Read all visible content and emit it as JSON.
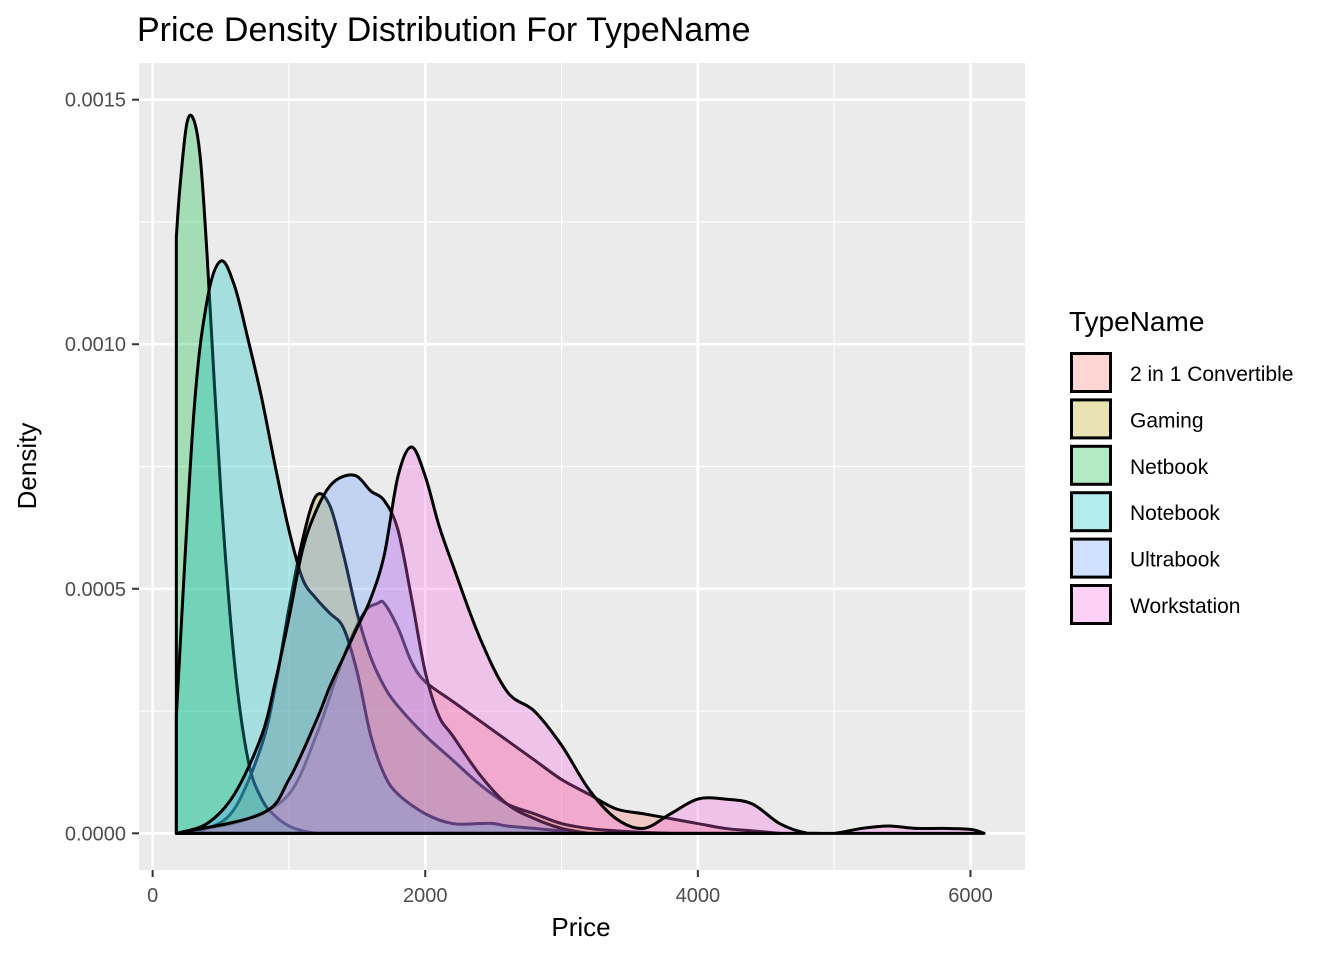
{
  "chart_data": {
    "type": "area",
    "title": "Price Density Distribution For TypeName",
    "xlabel": "Price",
    "ylabel": "Density",
    "xlim": [
      -100,
      6400
    ],
    "ylim": [
      -7.5e-05,
      0.001575
    ],
    "x_ticks": [
      0,
      2000,
      4000,
      6000
    ],
    "x_tick_labels": [
      "0",
      "2000",
      "4000",
      "6000"
    ],
    "y_ticks": [
      0.0,
      0.0005,
      0.001,
      0.0015
    ],
    "y_tick_labels": [
      "0.0000",
      "0.0005",
      "0.0010",
      "0.0015"
    ],
    "grid": true,
    "legend_position": "right",
    "legend_title": "TypeName",
    "series": [
      {
        "name": "2 in 1 Convertible",
        "color": "#F8766D",
        "x": [
          174,
          400,
          700,
          1000,
          1200,
          1400,
          1550,
          1650,
          1700,
          1800,
          1900,
          2000,
          2200,
          2400,
          2600,
          2800,
          3000,
          3200,
          3400,
          3600,
          3800,
          4000,
          4200,
          4400,
          4600
        ],
        "y": [
          0.0,
          1e-05,
          3e-05,
          8e-05,
          0.0002,
          0.00036,
          0.00045,
          0.00047,
          0.00047,
          0.00042,
          0.00035,
          0.00031,
          0.00027,
          0.00023,
          0.00019,
          0.00015,
          0.00011,
          8e-05,
          5e-05,
          4e-05,
          3e-05,
          2e-05,
          1e-05,
          5e-06,
          0.0
        ]
      },
      {
        "name": "Gaming",
        "color": "#B79F00",
        "x": [
          174,
          400,
          600,
          800,
          900,
          1000,
          1100,
          1200,
          1300,
          1400,
          1500,
          1600,
          1700,
          1800,
          2000,
          2200,
          2400,
          2600,
          2800,
          3000,
          3200,
          3400,
          3600,
          3800
        ],
        "y": [
          0.0,
          1e-05,
          5e-05,
          0.00018,
          0.0003,
          0.00046,
          0.0006,
          0.00069,
          0.00067,
          0.00057,
          0.00045,
          0.00036,
          0.0003,
          0.00026,
          0.0002,
          0.00015,
          0.0001,
          6e-05,
          4e-05,
          2e-05,
          1e-05,
          5e-06,
          2e-06,
          0.0
        ]
      },
      {
        "name": "Netbook",
        "color": "#00BA38",
        "x": [
          174,
          200,
          250,
          300,
          350,
          400,
          500,
          600,
          700,
          800,
          900,
          1000,
          1100,
          1200
        ],
        "y": [
          0.00122,
          0.00132,
          0.00145,
          0.00146,
          0.00138,
          0.00118,
          0.0007,
          0.00035,
          0.00015,
          7e-05,
          3.5e-05,
          1.5e-05,
          5e-06,
          0.0
        ]
      },
      {
        "name": "Notebook",
        "color": "#00BFC4",
        "x": [
          174,
          300,
          400,
          500,
          600,
          700,
          800,
          900,
          1000,
          1100,
          1200,
          1300,
          1400,
          1500,
          1600,
          1700,
          1800,
          2000,
          2200,
          2400,
          2500,
          2600,
          2800,
          3000,
          3200
        ],
        "y": [
          0.00024,
          0.00085,
          0.00109,
          0.00117,
          0.00112,
          0.00101,
          0.00089,
          0.00075,
          0.00062,
          0.00052,
          0.00048,
          0.00045,
          0.00042,
          0.00033,
          0.0002,
          0.00012,
          8e-05,
          4e-05,
          2e-05,
          2e-05,
          2e-05,
          1.5e-05,
          1e-05,
          5e-06,
          0.0
        ]
      },
      {
        "name": "Ultrabook",
        "color": "#619CFF",
        "x": [
          174,
          400,
          600,
          800,
          900,
          1000,
          1100,
          1200,
          1300,
          1400,
          1500,
          1600,
          1700,
          1800,
          1900,
          2000,
          2100,
          2200,
          2400,
          2600,
          2800,
          3000,
          3200
        ],
        "y": [
          0.0,
          2e-05,
          8e-05,
          0.0002,
          0.00031,
          0.00044,
          0.00058,
          0.00066,
          0.00071,
          0.00073,
          0.00073,
          0.0007,
          0.00068,
          0.00062,
          0.00048,
          0.00033,
          0.00024,
          0.0002,
          0.00012,
          6e-05,
          3e-05,
          1e-05,
          0.0
        ]
      },
      {
        "name": "Workstation",
        "color": "#F564E3",
        "x": [
          174,
          800,
          1000,
          1200,
          1300,
          1400,
          1500,
          1600,
          1700,
          1800,
          1900,
          2000,
          2100,
          2200,
          2400,
          2600,
          2800,
          3000,
          3200,
          3400,
          3600,
          3800,
          4000,
          4200,
          4400,
          4600,
          4800,
          5000,
          5200,
          5400,
          5600,
          5800,
          6000,
          6100
        ],
        "y": [
          0.0,
          4e-05,
          0.00011,
          0.00023,
          0.0003,
          0.00036,
          0.00042,
          0.00048,
          0.00057,
          0.00073,
          0.00079,
          0.00073,
          0.00063,
          0.00055,
          0.0004,
          0.00029,
          0.00025,
          0.00018,
          9e-05,
          3e-05,
          1e-05,
          4e-05,
          7e-05,
          7e-05,
          6e-05,
          2e-05,
          5e-07,
          0.0,
          1e-05,
          1.5e-05,
          1e-05,
          1e-05,
          8e-06,
          0.0
        ]
      }
    ]
  }
}
